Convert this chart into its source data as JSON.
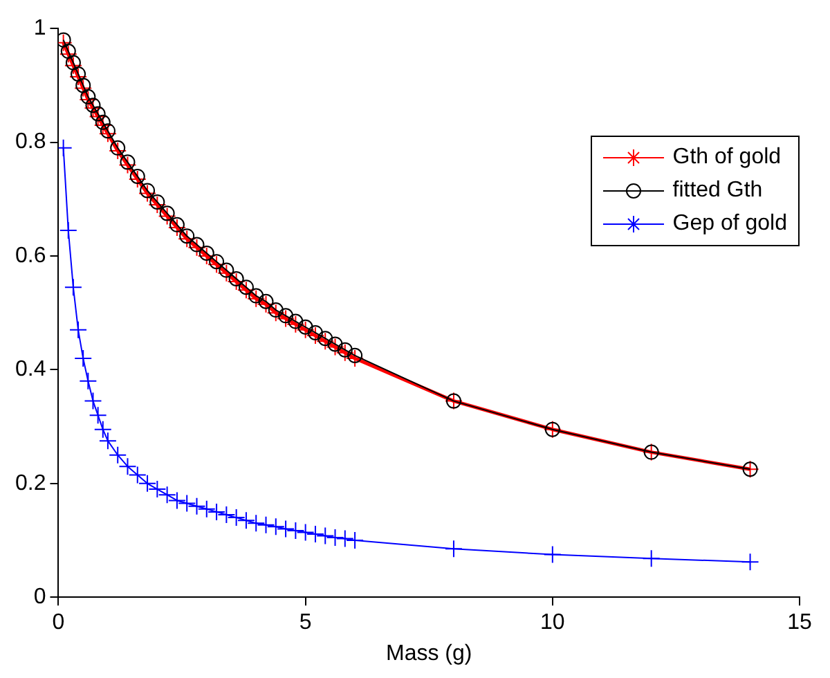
{
  "chart_data": {
    "type": "line",
    "xlabel": "Mass (g)",
    "x": [
      0.1,
      0.2,
      0.3,
      0.4,
      0.5,
      0.6,
      0.7,
      0.8,
      0.9,
      1.0,
      1.2,
      1.4,
      1.6,
      1.8,
      2.0,
      2.2,
      2.4,
      2.6,
      2.8,
      3.0,
      3.2,
      3.4,
      3.6,
      3.8,
      4.0,
      4.2,
      4.4,
      4.6,
      4.8,
      5.0,
      5.2,
      5.4,
      5.6,
      5.8,
      6.0,
      8,
      10,
      12,
      14
    ],
    "series": [
      {
        "name": "Gth of gold",
        "color": "#ff0000",
        "marker": "cross",
        "values": [
          0.975,
          0.955,
          0.935,
          0.915,
          0.895,
          0.875,
          0.86,
          0.845,
          0.83,
          0.815,
          0.785,
          0.76,
          0.735,
          0.71,
          0.69,
          0.67,
          0.65,
          0.63,
          0.615,
          0.6,
          0.585,
          0.57,
          0.555,
          0.54,
          0.525,
          0.515,
          0.5,
          0.49,
          0.48,
          0.47,
          0.46,
          0.45,
          0.44,
          0.43,
          0.42,
          0.345,
          0.295,
          0.255,
          0.225
        ]
      },
      {
        "name": "fitted Gth",
        "color": "#000000",
        "marker": "circle",
        "values": [
          0.98,
          0.96,
          0.94,
          0.92,
          0.9,
          0.88,
          0.865,
          0.85,
          0.835,
          0.82,
          0.79,
          0.765,
          0.74,
          0.715,
          0.695,
          0.675,
          0.655,
          0.635,
          0.62,
          0.605,
          0.59,
          0.575,
          0.56,
          0.545,
          0.53,
          0.52,
          0.505,
          0.495,
          0.485,
          0.475,
          0.465,
          0.455,
          0.445,
          0.435,
          0.425,
          0.345,
          0.295,
          0.255,
          0.225
        ]
      },
      {
        "name": "Gep of gold",
        "color": "#0000ff",
        "marker": "cross",
        "values": [
          0.79,
          0.645,
          0.545,
          0.47,
          0.42,
          0.38,
          0.345,
          0.32,
          0.295,
          0.275,
          0.25,
          0.23,
          0.215,
          0.2,
          0.19,
          0.18,
          0.17,
          0.165,
          0.16,
          0.155,
          0.15,
          0.145,
          0.14,
          0.135,
          0.13,
          0.127,
          0.124,
          0.12,
          0.117,
          0.114,
          0.111,
          0.108,
          0.105,
          0.103,
          0.1,
          0.085,
          0.075,
          0.068,
          0.062
        ]
      }
    ],
    "xlim": [
      0,
      15
    ],
    "xticks": [
      0,
      5,
      10,
      15
    ],
    "ylim": [
      0,
      1
    ],
    "yticks": [
      0,
      0.2,
      0.4,
      0.6,
      0.8,
      {
        "value": 1,
        "label": "1"
      }
    ],
    "grid": false,
    "legend": "top right"
  }
}
